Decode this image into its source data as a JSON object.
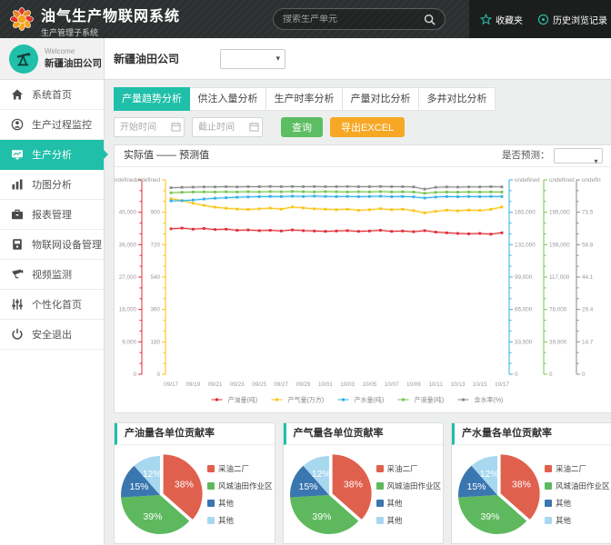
{
  "header": {
    "title": "油气生产物联网系统",
    "subtitle": "生产管理子系统",
    "search_placeholder": "搜索生产单元",
    "favorites_label": "收藏夹",
    "history_label": "历史浏览记录"
  },
  "sidebar": {
    "welcome": "Welcome",
    "company": "新疆油田公司",
    "items": [
      {
        "label": "系统首页"
      },
      {
        "label": "生产过程监控"
      },
      {
        "label": "生产分析",
        "active": true
      },
      {
        "label": "功图分析"
      },
      {
        "label": "报表管理"
      },
      {
        "label": "物联网设备管理"
      },
      {
        "label": "视频监测"
      },
      {
        "label": "个性化首页"
      },
      {
        "label": "安全退出"
      }
    ]
  },
  "toolbar": {
    "company_label": "新疆油田公司",
    "tabs": [
      {
        "label": "产量趋势分析",
        "active": true
      },
      {
        "label": "供注入量分析"
      },
      {
        "label": "生产时率分析"
      },
      {
        "label": "产量对比分析"
      },
      {
        "label": "多井对比分析"
      }
    ],
    "start_placeholder": "开始时间",
    "end_placeholder": "截止时间",
    "query_label": "查询",
    "export_label": "导出EXCEL"
  },
  "trend_panel": {
    "legend_title": "实际值 —— 预测值",
    "predict_label": "是否预测："
  },
  "chart_data": {
    "type": "line",
    "x_labels": [
      "09/17",
      "09/19",
      "09/21",
      "09/23",
      "09/25",
      "09/27",
      "09/29",
      "10/01",
      "10/03",
      "10/05",
      "10/07",
      "10/09",
      "10/11",
      "10/13",
      "10/15",
      "10/17"
    ],
    "axes": [
      {
        "side": "left",
        "color": "#e02b35",
        "max": 54000,
        "labels": [
          "0",
          "9,000",
          "18,000",
          "27,000",
          "36,000",
          "45,000"
        ]
      },
      {
        "side": "left",
        "color": "#fbc30c",
        "max": 1080,
        "labels": [
          "0",
          "180",
          "360",
          "540",
          "720",
          "900"
        ]
      },
      {
        "side": "right",
        "color": "#2fb0ea",
        "max": 198000,
        "labels": [
          "0",
          "33,000",
          "66,000",
          "99,000",
          "132,000",
          "165,000"
        ]
      },
      {
        "side": "right",
        "color": "#77c34f",
        "max": 234000,
        "labels": [
          "0",
          "39,000",
          "78,000",
          "117,000",
          "156,000",
          "195,000"
        ]
      },
      {
        "side": "right",
        "color": "#8a8a8a",
        "max": 88.2,
        "labels": [
          "0",
          "14.7",
          "29.4",
          "44.1",
          "58.8",
          "73.5"
        ]
      }
    ],
    "series": [
      {
        "name": "产油量(吨)",
        "color": "#e02b35",
        "axis": 0,
        "values": [
          40400,
          40600,
          40300,
          40500,
          40200,
          40300,
          40000,
          40100,
          39900,
          40000,
          39800,
          40100,
          39900,
          39800,
          39700,
          39800,
          39900,
          39700,
          39800,
          40000,
          39700,
          39800,
          39600,
          39900,
          39500,
          39300,
          39100,
          39000,
          39100,
          38900,
          39300
        ]
      },
      {
        "name": "产气量(万方)",
        "color": "#fbc30c",
        "axis": 1,
        "values": [
          975,
          965,
          950,
          938,
          928,
          922,
          918,
          916,
          919,
          923,
          917,
          929,
          924,
          919,
          917,
          914,
          917,
          911,
          914,
          920,
          914,
          917,
          909,
          897,
          905,
          912,
          908,
          912,
          910,
          916,
          929
        ]
      },
      {
        "name": "产水量(吨)",
        "color": "#2fb0ea",
        "axis": 2,
        "values": [
          176500,
          176800,
          177500,
          178500,
          179300,
          179800,
          180300,
          180600,
          180900,
          181200,
          181000,
          181300,
          181100,
          181400,
          181200,
          181000,
          181200,
          180900,
          181100,
          181300,
          180900,
          181100,
          180700,
          179500,
          180500,
          181000,
          180800,
          181100,
          180900,
          181200,
          181000
        ]
      },
      {
        "name": "产液量(吨)",
        "color": "#77c34f",
        "axis": 3,
        "values": [
          218500,
          219000,
          219300,
          219600,
          219400,
          219700,
          219500,
          219800,
          219600,
          219900,
          219700,
          220000,
          219800,
          219600,
          219900,
          219700,
          219500,
          219800,
          219600,
          219900,
          219500,
          219700,
          219300,
          217800,
          218900,
          219400,
          219200,
          219500,
          219300,
          219600,
          219400
        ]
      },
      {
        "name": "含水率(%)",
        "color": "#8a8a8a",
        "axis": 4,
        "values": [
          84.6,
          84.8,
          84.9,
          85.0,
          85.0,
          85.1,
          85.0,
          85.1,
          85.1,
          85.2,
          85.1,
          85.2,
          85.1,
          85.2,
          85.1,
          85.1,
          85.2,
          85.1,
          85.1,
          85.2,
          85.1,
          85.1,
          85.0,
          84.0,
          84.8,
          85.0,
          84.9,
          85.0,
          85.0,
          85.1,
          85.0
        ]
      }
    ]
  },
  "pie_charts": [
    {
      "title": "产油量各单位贡献率",
      "type": "pie",
      "slices": [
        {
          "label": "采油二厂",
          "value": 38,
          "color": "#e0604e"
        },
        {
          "label": "风城油田作业区",
          "value": 39,
          "color": "#5eb95e"
        },
        {
          "label": "其他",
          "value": 15,
          "color": "#3a76af"
        },
        {
          "label": "其他",
          "value": 12,
          "color": "#a8d8f0"
        }
      ]
    },
    {
      "title": "产气量各单位贡献率",
      "type": "pie",
      "slices": [
        {
          "label": "采油二厂",
          "value": 38,
          "color": "#e0604e"
        },
        {
          "label": "风城油田作业区",
          "value": 39,
          "color": "#5eb95e"
        },
        {
          "label": "其他",
          "value": 15,
          "color": "#3a76af"
        },
        {
          "label": "其他",
          "value": 12,
          "color": "#a8d8f0"
        }
      ]
    },
    {
      "title": "产水量各单位贡献率",
      "type": "pie",
      "slices": [
        {
          "label": "采油二厂",
          "value": 38,
          "color": "#e0604e"
        },
        {
          "label": "风城油田作业区",
          "value": 39,
          "color": "#5eb95e"
        },
        {
          "label": "其他",
          "value": 15,
          "color": "#3a76af"
        },
        {
          "label": "其他",
          "value": 12,
          "color": "#a8d8f0"
        }
      ]
    }
  ]
}
